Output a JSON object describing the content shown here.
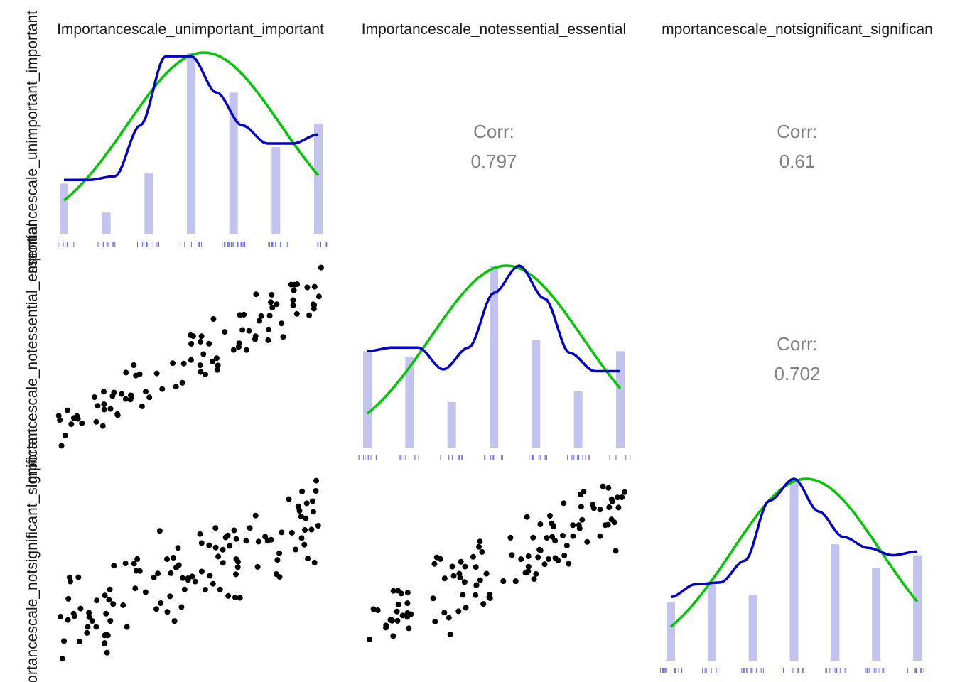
{
  "chart_data": {
    "type": "scatter-matrix",
    "variables": [
      "Importancescale_unimportant_important",
      "Importancescale_notessential_essential",
      "Importancescale_notsignificant_significant"
    ],
    "column_titles": [
      "Importancescale_unimportant_important",
      "Importancescale_notessential_essential",
      "mportancescale_notsignificant_significan"
    ],
    "row_titles": [
      "mportancescale_unimportant_important",
      "Importancescale_notessential_essential",
      "Importancescale_notsignificant_significant"
    ],
    "correlations": [
      {
        "label": "Corr:",
        "value": "0.797",
        "row": 0,
        "col": 1
      },
      {
        "label": "Corr:",
        "value": "0.61",
        "row": 0,
        "col": 2
      },
      {
        "label": "Corr:",
        "value": "0.702",
        "row": 1,
        "col": 2
      }
    ],
    "colors": {
      "bars": "#c3c3f0",
      "density": "#0000c8",
      "normal": "#00c800",
      "rug": "#7070e0",
      "points": "#000000",
      "corr_text": "#7f7f7f"
    },
    "histograms": [
      {
        "values": [
          0.28,
          0.12,
          0.34,
          1.0,
          0.78,
          0.48,
          0.61
        ]
      },
      {
        "values": [
          0.53,
          0.5,
          0.25,
          1.0,
          0.59,
          0.31,
          0.53
        ]
      },
      {
        "values": [
          0.32,
          0.42,
          0.36,
          1.0,
          0.64,
          0.51,
          0.58
        ]
      }
    ],
    "grid": false
  }
}
